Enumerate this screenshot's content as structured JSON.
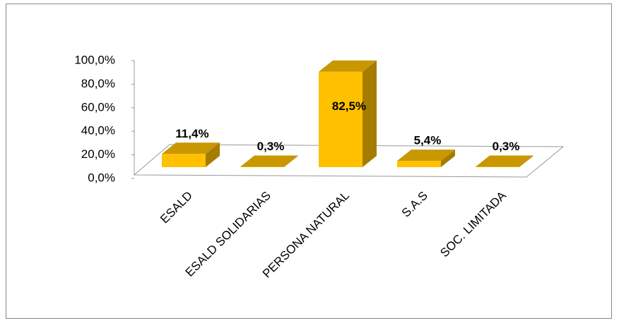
{
  "chart_data": {
    "type": "bar3d",
    "categories": [
      "ESALD",
      "ESALD SOLIDARIAS",
      "PERSONA NATURAL",
      "S.A.S",
      "SOC. LIMITADA"
    ],
    "values": [
      11.4,
      0.3,
      82.5,
      5.4,
      0.3
    ],
    "value_labels": [
      "11,4%",
      "0,3%",
      "82,5%",
      "5,4%",
      "0,3%"
    ],
    "color": "#FFC000",
    "ylim": [
      0,
      100
    ],
    "yticks": [
      {
        "value": 0,
        "label": "0,0%"
      },
      {
        "value": 20,
        "label": "20,0%"
      },
      {
        "value": 40,
        "label": "40,0%"
      },
      {
        "value": 60,
        "label": "60,0%"
      },
      {
        "value": 80,
        "label": "80,0%"
      },
      {
        "value": 100,
        "label": "100,0%"
      }
    ]
  }
}
